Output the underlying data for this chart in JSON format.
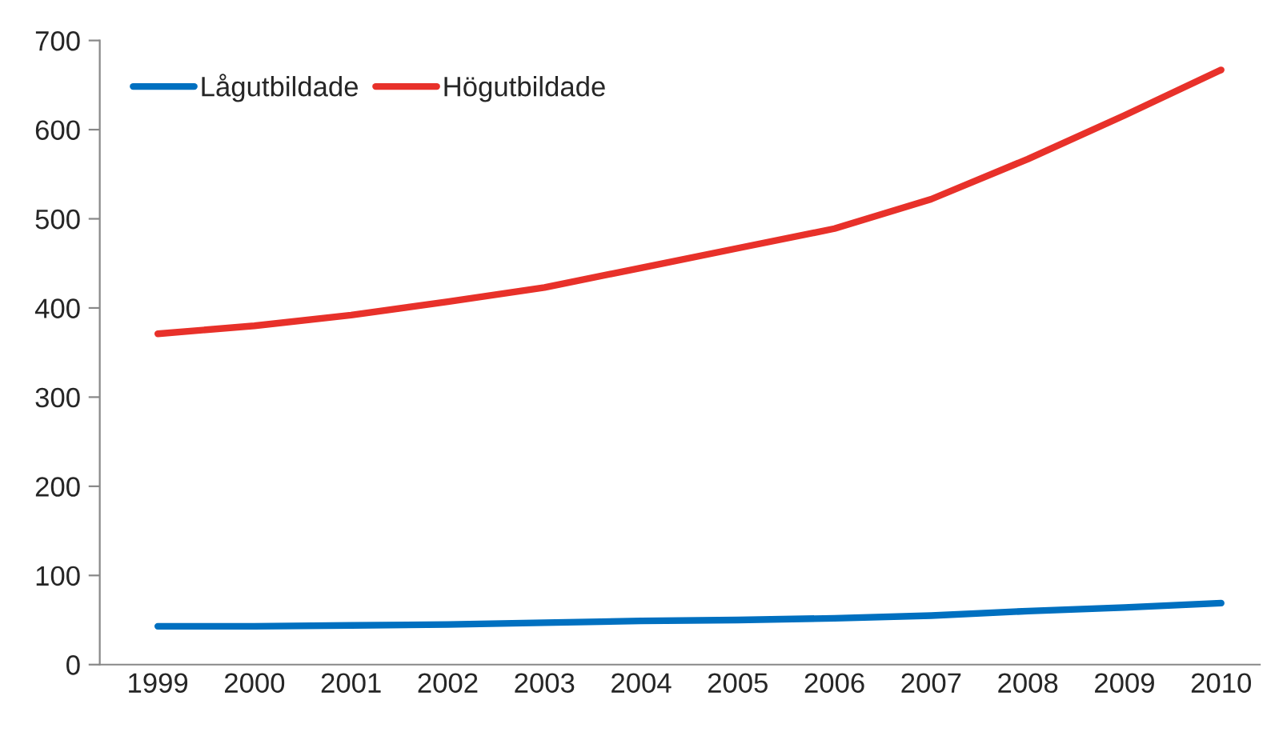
{
  "chart_data": {
    "type": "line",
    "categories": [
      "1999",
      "2000",
      "2001",
      "2002",
      "2003",
      "2004",
      "2005",
      "2006",
      "2007",
      "2008",
      "2009",
      "2010"
    ],
    "series": [
      {
        "name": "Lågutbildade",
        "color": "#0070c0",
        "values": [
          43,
          43,
          44,
          45,
          47,
          49,
          50,
          52,
          55,
          60,
          64,
          69
        ]
      },
      {
        "name": "Högutbildade",
        "color": "#e8312a",
        "values": [
          371,
          380,
          392,
          407,
          423,
          445,
          467,
          489,
          522,
          567,
          616,
          667
        ]
      }
    ],
    "ylim": [
      0,
      700
    ],
    "yticks": [
      0,
      100,
      200,
      300,
      400,
      500,
      600,
      700
    ],
    "grid": false,
    "legend": "top left",
    "marker": "none",
    "line_style": "solid"
  }
}
